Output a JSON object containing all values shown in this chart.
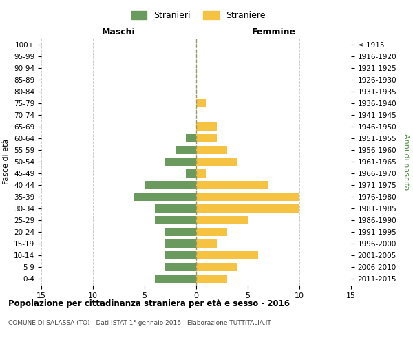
{
  "age_groups": [
    "0-4",
    "5-9",
    "10-14",
    "15-19",
    "20-24",
    "25-29",
    "30-34",
    "35-39",
    "40-44",
    "45-49",
    "50-54",
    "55-59",
    "60-64",
    "65-69",
    "70-74",
    "75-79",
    "80-84",
    "85-89",
    "90-94",
    "95-99",
    "100+"
  ],
  "birth_years": [
    "2011-2015",
    "2006-2010",
    "2001-2005",
    "1996-2000",
    "1991-1995",
    "1986-1990",
    "1981-1985",
    "1976-1980",
    "1971-1975",
    "1966-1970",
    "1961-1965",
    "1956-1960",
    "1951-1955",
    "1946-1950",
    "1941-1945",
    "1936-1940",
    "1931-1935",
    "1926-1930",
    "1921-1925",
    "1916-1920",
    "≤ 1915"
  ],
  "males": [
    4,
    3,
    3,
    3,
    3,
    4,
    4,
    6,
    5,
    1,
    3,
    2,
    1,
    0,
    0,
    0,
    0,
    0,
    0,
    0,
    0
  ],
  "females": [
    3,
    4,
    6,
    2,
    3,
    5,
    10,
    10,
    7,
    1,
    4,
    3,
    2,
    2,
    0,
    1,
    0,
    0,
    0,
    0,
    0
  ],
  "male_color": "#6b9a5e",
  "female_color": "#f5c242",
  "title": "Popolazione per cittadinanza straniera per età e sesso - 2016",
  "subtitle": "COMUNE DI SALASSA (TO) - Dati ISTAT 1° gennaio 2016 - Elaborazione TUTTITALIA.IT",
  "xlabel_left": "Maschi",
  "xlabel_right": "Femmine",
  "ylabel_left": "Fasce di età",
  "ylabel_right": "Anni di nascita",
  "legend_stranieri": "Stranieri",
  "legend_straniere": "Straniere",
  "xlim": 15,
  "background_color": "#ffffff",
  "grid_color": "#cccccc",
  "dashed_line_color": "#999966"
}
